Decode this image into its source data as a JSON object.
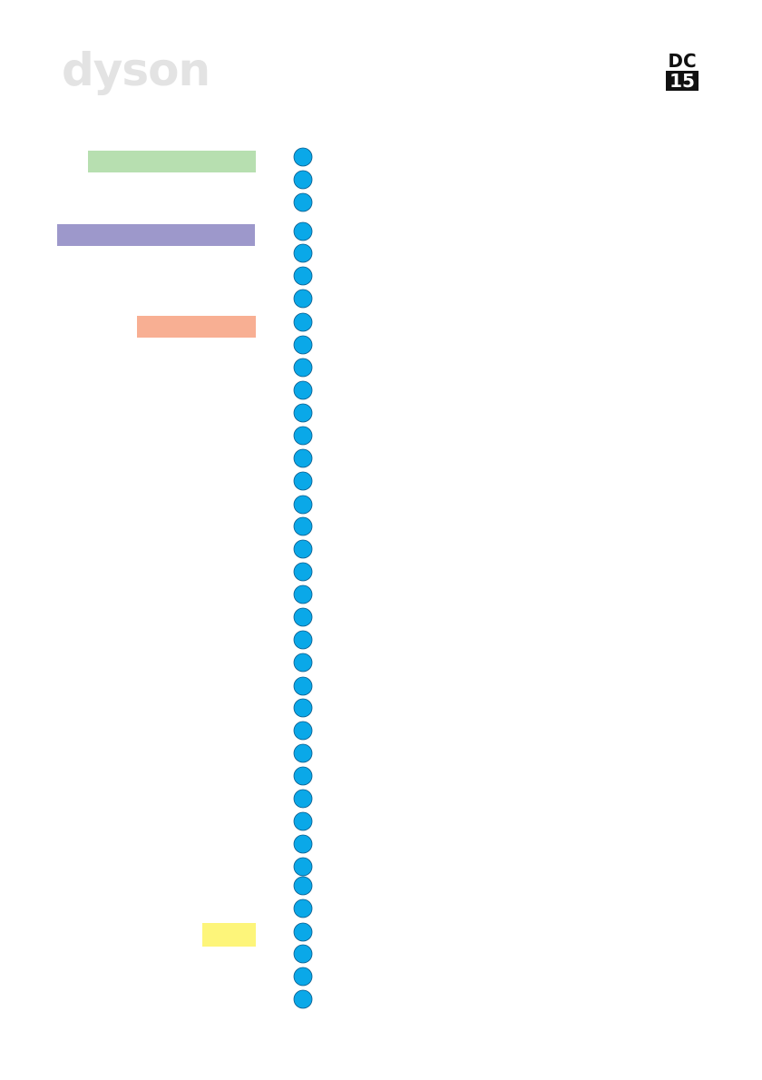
{
  "header": {
    "logo": "dyson",
    "model_top": "DC",
    "model_bottom": "15"
  }
}
